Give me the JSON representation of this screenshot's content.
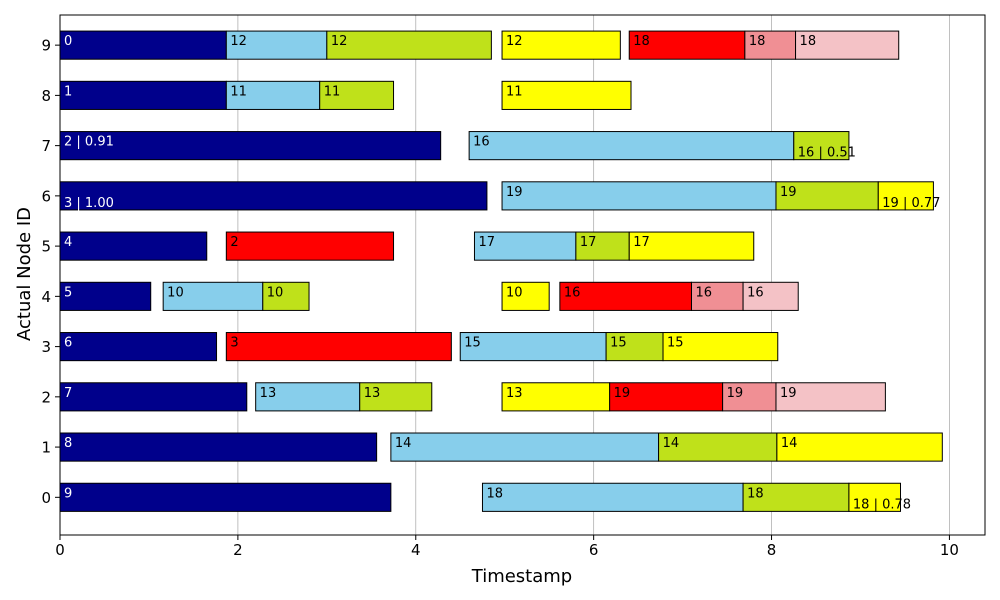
{
  "colors": {
    "compute": "#00008b",
    "phase_a": "#87ceeb",
    "phase_b": "#bfe11a",
    "phase_c": "#ffff00",
    "phase_d": "#ff0000",
    "phase_e": "#f08f94",
    "phase_f": "#f4c2c6",
    "highlight_tick": "#ff0000"
  },
  "chart_data": {
    "type": "gantt",
    "xlabel": "Timestamp",
    "ylabel": "Actual Node ID",
    "xlim": [
      0,
      10.4
    ],
    "ylim": [
      -0.75,
      9.6
    ],
    "xticks": [
      "0",
      "2",
      "4",
      "6",
      "8",
      "10"
    ],
    "xtick_values": [
      0,
      2,
      4,
      6,
      8,
      10
    ],
    "yticks": [
      "0",
      "1",
      "2",
      "3",
      "4",
      "5",
      "6",
      "7",
      "8",
      "9"
    ],
    "highlighted_rows": [
      0,
      1,
      6,
      7
    ],
    "grid": "vertical",
    "rows": [
      {
        "node": 9,
        "tasks": [
          {
            "start": 0.0,
            "end": 1.87,
            "label": "0",
            "color": "compute"
          },
          {
            "start": 1.87,
            "end": 3.0,
            "label": "12",
            "color": "phase_a"
          },
          {
            "start": 3.0,
            "end": 4.85,
            "label": "12",
            "color": "phase_b"
          },
          {
            "start": 4.97,
            "end": 6.3,
            "label": "12",
            "color": "phase_c"
          },
          {
            "start": 6.4,
            "end": 7.7,
            "label": "18",
            "color": "phase_d"
          },
          {
            "start": 7.7,
            "end": 8.27,
            "label": "18",
            "color": "phase_e"
          },
          {
            "start": 8.27,
            "end": 9.43,
            "label": "18",
            "color": "phase_f"
          }
        ]
      },
      {
        "node": 8,
        "tasks": [
          {
            "start": 0.0,
            "end": 1.87,
            "label": "1",
            "color": "compute"
          },
          {
            "start": 1.87,
            "end": 2.92,
            "label": "11",
            "color": "phase_a"
          },
          {
            "start": 2.92,
            "end": 3.75,
            "label": "11",
            "color": "phase_b"
          },
          {
            "start": 4.97,
            "end": 6.42,
            "label": "11",
            "color": "phase_c"
          }
        ]
      },
      {
        "node": 7,
        "tasks": [
          {
            "start": 0.0,
            "end": 4.28,
            "label": "2 | 0.91",
            "color": "compute"
          },
          {
            "start": 4.6,
            "end": 8.25,
            "label": "16",
            "color": "phase_a"
          },
          {
            "start": 8.25,
            "end": 8.87,
            "label": "16 | 0.51",
            "color": "phase_b",
            "label_pos": "bottom"
          }
        ]
      },
      {
        "node": 6,
        "tasks": [
          {
            "start": 0.0,
            "end": 4.8,
            "label": "3 | 1.00",
            "color": "compute",
            "label_pos": "bottom"
          },
          {
            "start": 4.97,
            "end": 8.05,
            "label": "19",
            "color": "phase_a"
          },
          {
            "start": 8.05,
            "end": 9.2,
            "label": "19",
            "color": "phase_b"
          },
          {
            "start": 9.2,
            "end": 9.82,
            "label": "19 | 0.77",
            "color": "phase_c",
            "label_pos": "bottom"
          }
        ]
      },
      {
        "node": 5,
        "tasks": [
          {
            "start": 0.0,
            "end": 1.65,
            "label": "4",
            "color": "compute"
          },
          {
            "start": 1.87,
            "end": 3.75,
            "label": "2",
            "color": "phase_d"
          },
          {
            "start": 4.66,
            "end": 5.8,
            "label": "17",
            "color": "phase_a"
          },
          {
            "start": 5.8,
            "end": 6.4,
            "label": "17",
            "color": "phase_b"
          },
          {
            "start": 6.4,
            "end": 7.8,
            "label": "17",
            "color": "phase_c"
          }
        ]
      },
      {
        "node": 4,
        "tasks": [
          {
            "start": 0.0,
            "end": 1.02,
            "label": "5",
            "color": "compute"
          },
          {
            "start": 1.16,
            "end": 2.28,
            "label": "10",
            "color": "phase_a"
          },
          {
            "start": 2.28,
            "end": 2.8,
            "label": "10",
            "color": "phase_b"
          },
          {
            "start": 4.97,
            "end": 5.5,
            "label": "10",
            "color": "phase_c"
          },
          {
            "start": 5.62,
            "end": 7.1,
            "label": "16",
            "color": "phase_d"
          },
          {
            "start": 7.1,
            "end": 7.68,
            "label": "16",
            "color": "phase_e"
          },
          {
            "start": 7.68,
            "end": 8.3,
            "label": "16",
            "color": "phase_f"
          }
        ]
      },
      {
        "node": 3,
        "tasks": [
          {
            "start": 0.0,
            "end": 1.76,
            "label": "6",
            "color": "compute"
          },
          {
            "start": 1.87,
            "end": 4.4,
            "label": "3",
            "color": "phase_d"
          },
          {
            "start": 4.5,
            "end": 6.14,
            "label": "15",
            "color": "phase_a"
          },
          {
            "start": 6.14,
            "end": 6.78,
            "label": "15",
            "color": "phase_b"
          },
          {
            "start": 6.78,
            "end": 8.07,
            "label": "15",
            "color": "phase_c"
          }
        ]
      },
      {
        "node": 2,
        "tasks": [
          {
            "start": 0.0,
            "end": 2.1,
            "label": "7",
            "color": "compute"
          },
          {
            "start": 2.2,
            "end": 3.37,
            "label": "13",
            "color": "phase_a"
          },
          {
            "start": 3.37,
            "end": 4.18,
            "label": "13",
            "color": "phase_b"
          },
          {
            "start": 4.97,
            "end": 6.18,
            "label": "13",
            "color": "phase_c"
          },
          {
            "start": 6.18,
            "end": 7.45,
            "label": "19",
            "color": "phase_d"
          },
          {
            "start": 7.45,
            "end": 8.05,
            "label": "19",
            "color": "phase_e"
          },
          {
            "start": 8.05,
            "end": 9.28,
            "label": "19",
            "color": "phase_f"
          }
        ]
      },
      {
        "node": 1,
        "tasks": [
          {
            "start": 0.0,
            "end": 3.56,
            "label": "8",
            "color": "compute"
          },
          {
            "start": 3.72,
            "end": 6.73,
            "label": "14",
            "color": "phase_a"
          },
          {
            "start": 6.73,
            "end": 8.06,
            "label": "14",
            "color": "phase_b"
          },
          {
            "start": 8.06,
            "end": 9.92,
            "label": "14",
            "color": "phase_c"
          }
        ]
      },
      {
        "node": 0,
        "tasks": [
          {
            "start": 0.0,
            "end": 3.72,
            "label": "9",
            "color": "compute"
          },
          {
            "start": 4.75,
            "end": 7.68,
            "label": "18",
            "color": "phase_a"
          },
          {
            "start": 7.68,
            "end": 8.87,
            "label": "18",
            "color": "phase_b"
          },
          {
            "start": 8.87,
            "end": 9.45,
            "label": "18 | 0.78",
            "color": "phase_c",
            "label_pos": "bottom"
          }
        ]
      }
    ]
  }
}
